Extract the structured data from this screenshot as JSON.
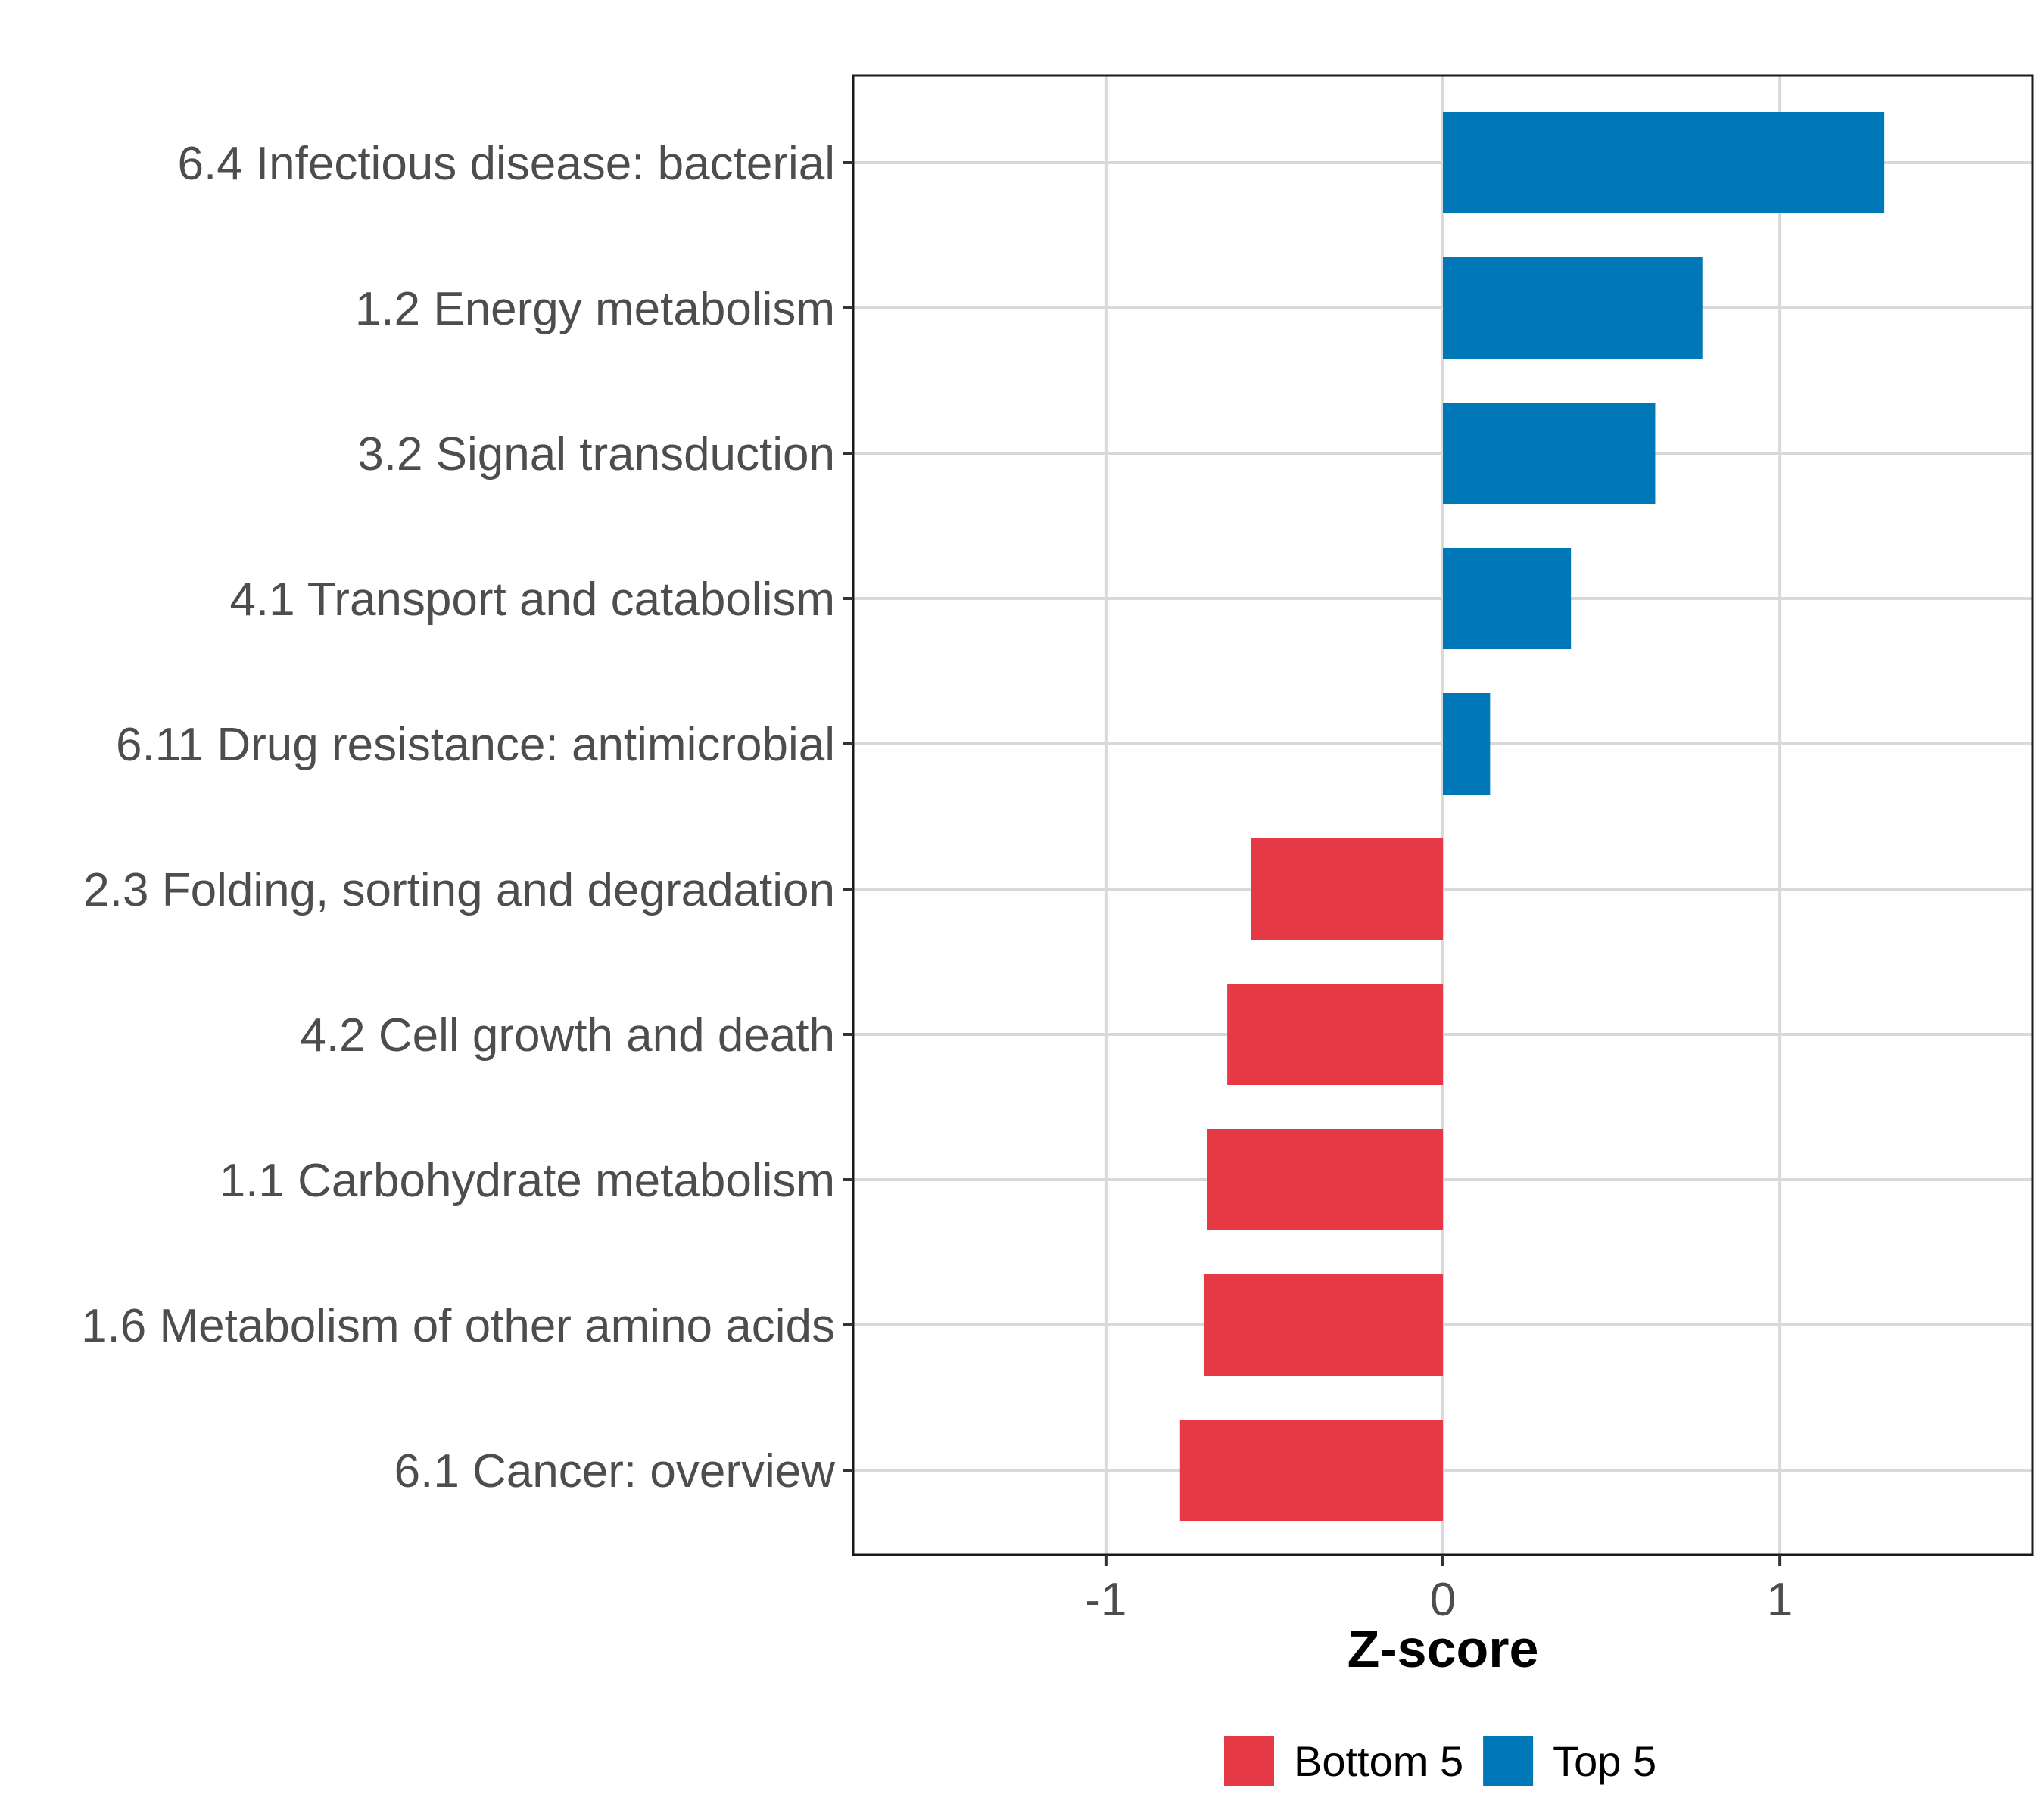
{
  "chart_data": {
    "type": "bar",
    "orientation": "horizontal",
    "title": "",
    "xlabel": "Z-score",
    "ylabel": "",
    "xlim": [
      -1.75,
      1.75
    ],
    "xticks": [
      -1,
      0,
      1
    ],
    "xtick_labels": [
      "-1",
      "0",
      "1"
    ],
    "grid": true,
    "categories": [
      "6.4 Infectious disease: bacterial",
      "1.2 Energy metabolism",
      "3.2 Signal transduction",
      "4.1 Transport and catabolism",
      "6.11 Drug resistance: antimicrobial",
      "2.3 Folding, sorting and degradation",
      "4.2 Cell growth and death",
      "1.1 Carbohydrate metabolism",
      "1.6 Metabolism of other amino acids",
      "6.1 Cancer: overview"
    ],
    "values": [
      1.31,
      0.77,
      0.63,
      0.38,
      0.14,
      -0.57,
      -0.64,
      -0.7,
      -0.71,
      -0.78
    ],
    "groups": [
      "Top 5",
      "Top 5",
      "Top 5",
      "Top 5",
      "Top 5",
      "Bottom 5",
      "Bottom 5",
      "Bottom 5",
      "Bottom 5",
      "Bottom 5"
    ],
    "legend": {
      "placement": "bottom",
      "entries": [
        {
          "name": "Bottom 5",
          "color": "#e63946"
        },
        {
          "name": "Top 5",
          "color": "#0077b6"
        }
      ]
    },
    "colors": {
      "Bottom 5": "#e63946",
      "Top 5": "#0077b6"
    }
  }
}
